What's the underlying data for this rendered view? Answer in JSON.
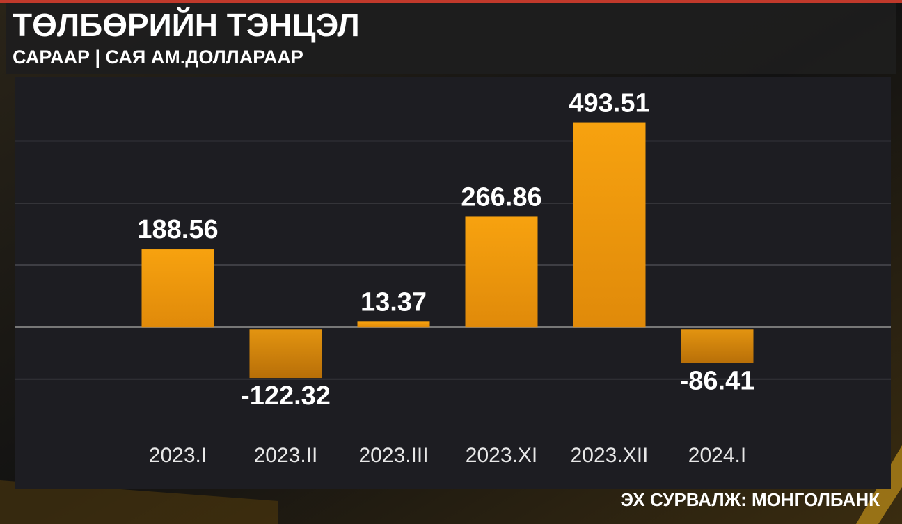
{
  "chart_data": {
    "type": "bar",
    "title": "ТӨЛБӨРИЙН ТЭНЦЭЛ",
    "subtitle": "САРААР | САЯ АМ.ДОЛЛАРААР",
    "source": "ЭХ СУРВАЛЖ: МОНГОЛБАНК",
    "categories": [
      "2023.I",
      "2023.II",
      "2023.III",
      "2023.XI",
      "2023.XII",
      "2024.I"
    ],
    "values": [
      188.56,
      -122.32,
      13.37,
      266.86,
      493.51,
      -86.41
    ],
    "color": "#f39a0f",
    "ylim": [
      -218,
      602
    ],
    "yticks": [
      -125,
      0,
      150,
      300,
      450
    ],
    "grid": true
  }
}
